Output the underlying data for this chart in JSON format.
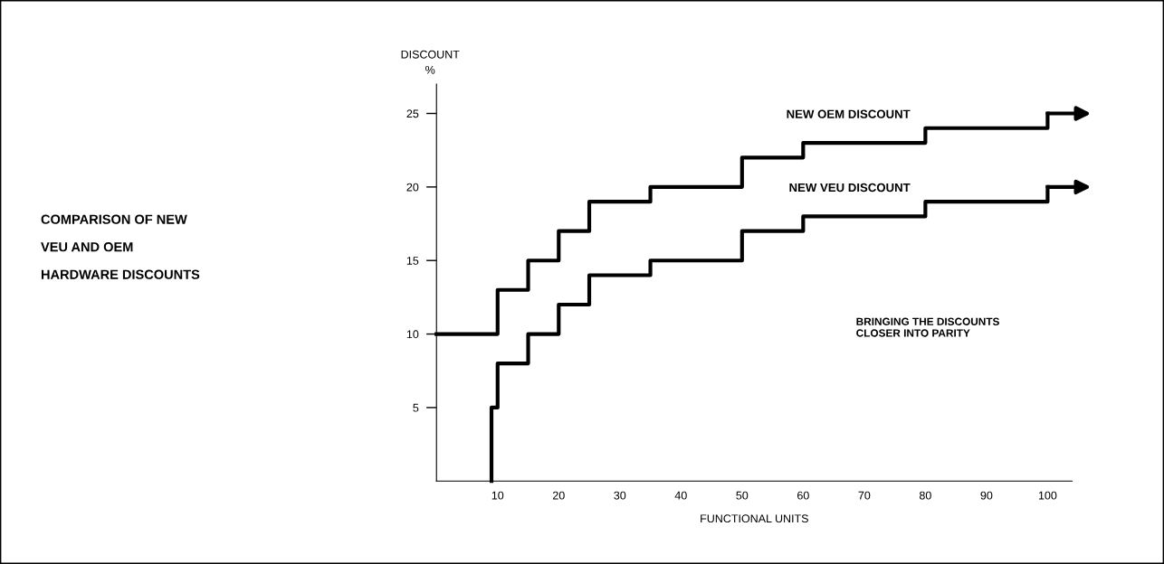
{
  "chart_data": {
    "type": "step",
    "title": "COMPARISON OF NEW\nVEU AND OEM\nHARDWARE DISCOUNTS",
    "xlabel": "FUNCTIONAL UNITS",
    "ylabel": "DISCOUNT\n%",
    "annotations": [
      "BRINGING THE DISCOUNTS\nCLOSER INTO PARITY"
    ],
    "series": [
      {
        "name": "NEW OEM DISCOUNT",
        "color": "#000000",
        "x": [
          0,
          10,
          15,
          20,
          25,
          35,
          50,
          60,
          80,
          100
        ],
        "values": [
          10,
          13,
          15,
          17,
          19,
          20,
          22,
          23,
          24,
          25
        ]
      },
      {
        "name": "NEW VEU DISCOUNT",
        "color": "#000000",
        "x": [
          9,
          9,
          10,
          15,
          20,
          25,
          35,
          50,
          60,
          80,
          100
        ],
        "values": [
          0,
          5,
          8,
          10,
          12,
          14,
          15,
          17,
          18,
          19,
          20
        ]
      }
    ],
    "xlim": [
      0,
      104
    ],
    "ylim": [
      0,
      27
    ],
    "xticks": [
      10,
      20,
      30,
      40,
      50,
      60,
      70,
      80,
      90,
      100
    ],
    "yticks": [
      5,
      10,
      15,
      20,
      25
    ],
    "grid": false,
    "legend": false,
    "marker": "none",
    "line_style": "solid"
  }
}
